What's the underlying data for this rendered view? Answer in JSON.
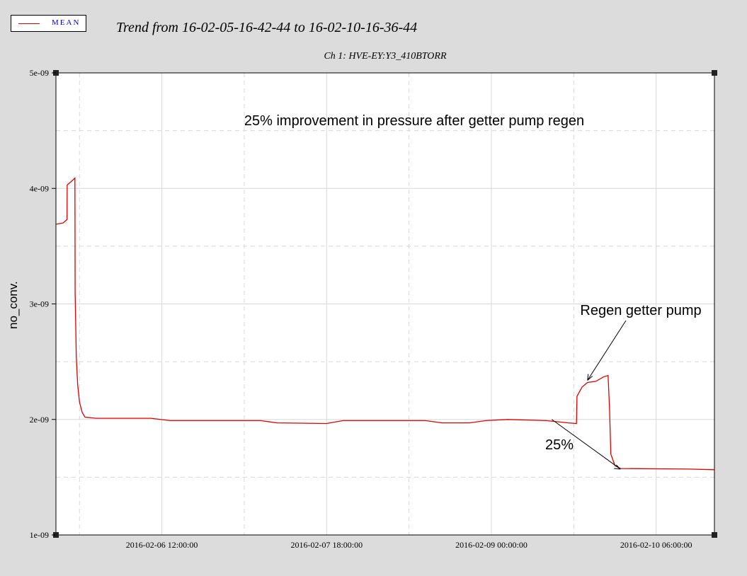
{
  "legend": {
    "label": "MEAN",
    "color": "#cc0000"
  },
  "title": "Trend from 16-02-05-16-42-44 to 16-02-10-16-36-44",
  "chart_data": {
    "type": "line",
    "title": "Ch 1: HVE-EY:Y3_410BTORR",
    "xlabel": "",
    "ylabel": "no_conv.",
    "ylim": [
      1e-09,
      5e-09
    ],
    "xlim": [
      "2016-02-05 16:42:44",
      "2016-02-10 16:36:44"
    ],
    "y_ticks": [
      "1e-09",
      "2e-09",
      "3e-09",
      "4e-09",
      "5e-09"
    ],
    "x_tick_labels": [
      "2016-02-06 12:00:00",
      "2016-02-07 18:00:00",
      "2016-02-09 00:00:00",
      "2016-02-10 06:00:00"
    ],
    "grid": true,
    "line_color": "#dd0000",
    "series": [
      {
        "name": "MEAN",
        "points": [
          [
            "2016-02-05 16:42:44",
            3.69e-09
          ],
          [
            "2016-02-05 18:00:00",
            3.7e-09
          ],
          [
            "2016-02-05 18:44:00",
            3.73e-09
          ],
          [
            "2016-02-05 18:46:00",
            4.03e-09
          ],
          [
            "2016-02-05 19:30:00",
            4.06e-09
          ],
          [
            "2016-02-05 20:10:00",
            4.09e-09
          ],
          [
            "2016-02-05 20:12:00",
            3.1e-09
          ],
          [
            "2016-02-05 20:25:00",
            2.55e-09
          ],
          [
            "2016-02-05 20:40:00",
            2.3e-09
          ],
          [
            "2016-02-05 21:00:00",
            2.15e-09
          ],
          [
            "2016-02-05 21:30:00",
            2.06e-09
          ],
          [
            "2016-02-05 22:00:00",
            2.02e-09
          ],
          [
            "2016-02-06 00:00:00",
            2.01e-09
          ],
          [
            "2016-02-06 10:00:00",
            2.01e-09
          ],
          [
            "2016-02-06 13:30:00",
            1.99e-09
          ],
          [
            "2016-02-07 06:00:00",
            1.99e-09
          ],
          [
            "2016-02-07 09:00:00",
            1.97e-09
          ],
          [
            "2016-02-07 18:00:00",
            1.965e-09
          ],
          [
            "2016-02-07 21:00:00",
            1.99e-09
          ],
          [
            "2016-02-08 12:00:00",
            1.99e-09
          ],
          [
            "2016-02-08 15:00:00",
            1.97e-09
          ],
          [
            "2016-02-08 20:00:00",
            1.97e-09
          ],
          [
            "2016-02-08 23:00:00",
            1.99e-09
          ],
          [
            "2016-02-09 03:00:00",
            2e-09
          ],
          [
            "2016-02-09 10:00:00",
            1.99e-09
          ],
          [
            "2016-02-09 14:00:00",
            1.97e-09
          ],
          [
            "2016-02-09 15:30:00",
            1.965e-09
          ],
          [
            "2016-02-09 15:35:00",
            2.2e-09
          ],
          [
            "2016-02-09 16:30:00",
            2.28e-09
          ],
          [
            "2016-02-09 17:30:00",
            2.32e-09
          ],
          [
            "2016-02-09 19:00:00",
            2.33e-09
          ],
          [
            "2016-02-09 20:30:00",
            2.37e-09
          ],
          [
            "2016-02-09 21:15:00",
            2.38e-09
          ],
          [
            "2016-02-09 21:30:00",
            2.1e-09
          ],
          [
            "2016-02-09 21:45:00",
            1.7e-09
          ],
          [
            "2016-02-09 22:30:00",
            1.6e-09
          ],
          [
            "2016-02-09 23:30:00",
            1.575e-09
          ],
          [
            "2016-02-10 12:00:00",
            1.57e-09
          ],
          [
            "2016-02-10 16:36:44",
            1.565e-09
          ]
        ]
      }
    ],
    "annotations": [
      {
        "text": "25% improvement in pressure after getter pump regen"
      },
      {
        "text": "Regen getter pump",
        "arrow_to": [
          "2016-02-09 17:30:00",
          2.32e-09
        ]
      },
      {
        "text": "25%",
        "arrow_from": [
          "2016-02-09 11:00:00",
          2e-09
        ],
        "arrow_to": [
          "2016-02-09 23:30:00",
          1.57e-09
        ]
      }
    ]
  }
}
